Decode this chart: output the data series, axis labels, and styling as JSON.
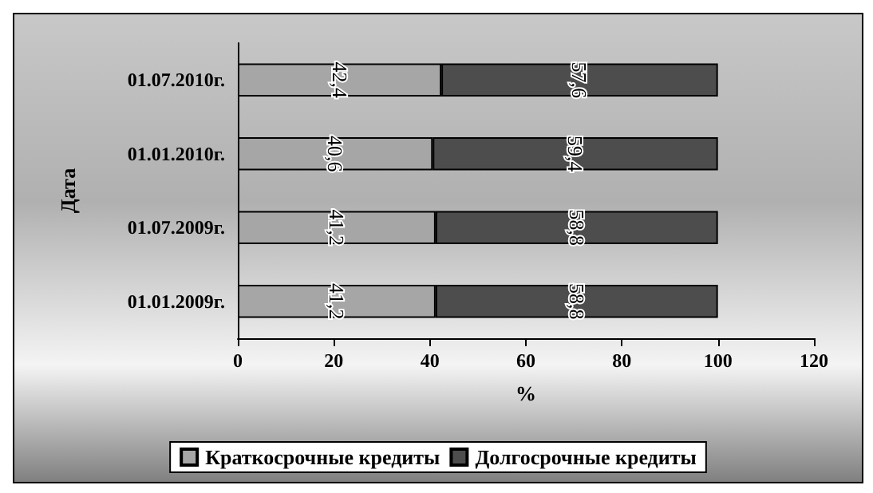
{
  "chart_data": {
    "type": "bar",
    "orientation": "horizontal",
    "stacked": true,
    "xlabel": "%",
    "ylabel": "Дата",
    "categories": [
      "01.07.2010г.",
      "01.01.2010г.",
      "01.07.2009г.",
      "01.01.2009г."
    ],
    "series": [
      {
        "name": "Краткосрочные кредиты",
        "color": "#a6a6a6",
        "values": [
          42.4,
          40.6,
          41.2,
          41.2
        ],
        "value_labels": [
          "42,4",
          "40,6",
          "41,2",
          "41,2"
        ]
      },
      {
        "name": "Долгосрочные кредиты",
        "color": "#4d4d4d",
        "values": [
          57.6,
          59.4,
          58.8,
          58.8
        ],
        "value_labels": [
          "57,6",
          "59,4",
          "58,8",
          "58,8"
        ]
      }
    ],
    "xlim": [
      0,
      120
    ],
    "xticks": [
      0,
      20,
      40,
      60,
      80,
      100,
      120
    ],
    "grid": false,
    "legend": "bottom"
  }
}
